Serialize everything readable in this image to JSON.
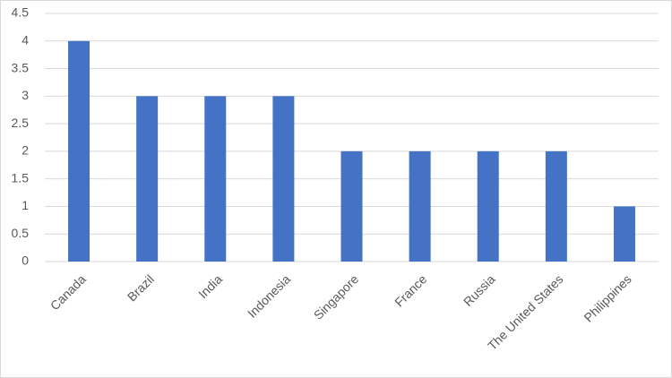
{
  "chart_data": {
    "type": "bar",
    "categories": [
      "Canada",
      "Brazil",
      "India",
      "Indonesia",
      "Singapore",
      "France",
      "Russia",
      "The United States",
      "Philippines"
    ],
    "values": [
      4,
      3,
      3,
      3,
      2,
      2,
      2,
      2,
      1
    ],
    "color": "#4472c4",
    "ylim": [
      0,
      4.5
    ],
    "yticks": [
      0,
      0.5,
      1,
      1.5,
      2,
      2.5,
      3,
      3.5,
      4,
      4.5
    ],
    "grid": true
  }
}
